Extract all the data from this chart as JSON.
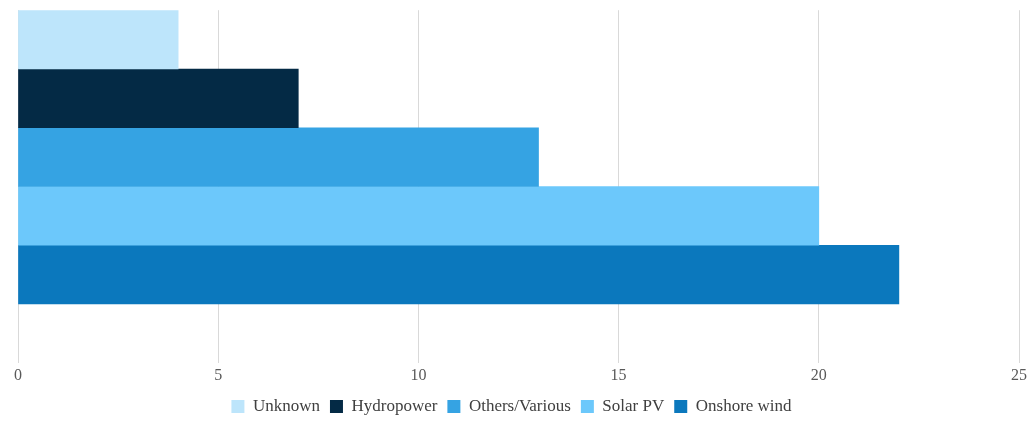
{
  "chart_data": {
    "type": "bar",
    "orientation": "horizontal",
    "stacked": true,
    "categories": [
      null,
      null,
      null,
      null,
      null,
      null
    ],
    "series": [
      {
        "name": "Unknown",
        "color": "#bde5fb",
        "values": [
          4,
          null,
          null,
          null,
          null,
          null
        ]
      },
      {
        "name": "Hydropower",
        "color": "#042a45",
        "values": [
          null,
          7,
          null,
          null,
          null,
          null
        ]
      },
      {
        "name": "Others/Various",
        "color": "#35a3e3",
        "values": [
          null,
          null,
          13,
          null,
          null,
          null
        ]
      },
      {
        "name": "Solar PV",
        "color": "#6cc8fb",
        "values": [
          null,
          null,
          null,
          20,
          null,
          null
        ]
      },
      {
        "name": "Onshore wind",
        "color": "#0b78bd",
        "values": [
          null,
          null,
          null,
          null,
          22,
          null
        ]
      }
    ],
    "xlim": [
      0,
      25
    ],
    "xticks": [
      0,
      5,
      10,
      15,
      20,
      25
    ],
    "grid": "x",
    "legend": "bottom"
  }
}
